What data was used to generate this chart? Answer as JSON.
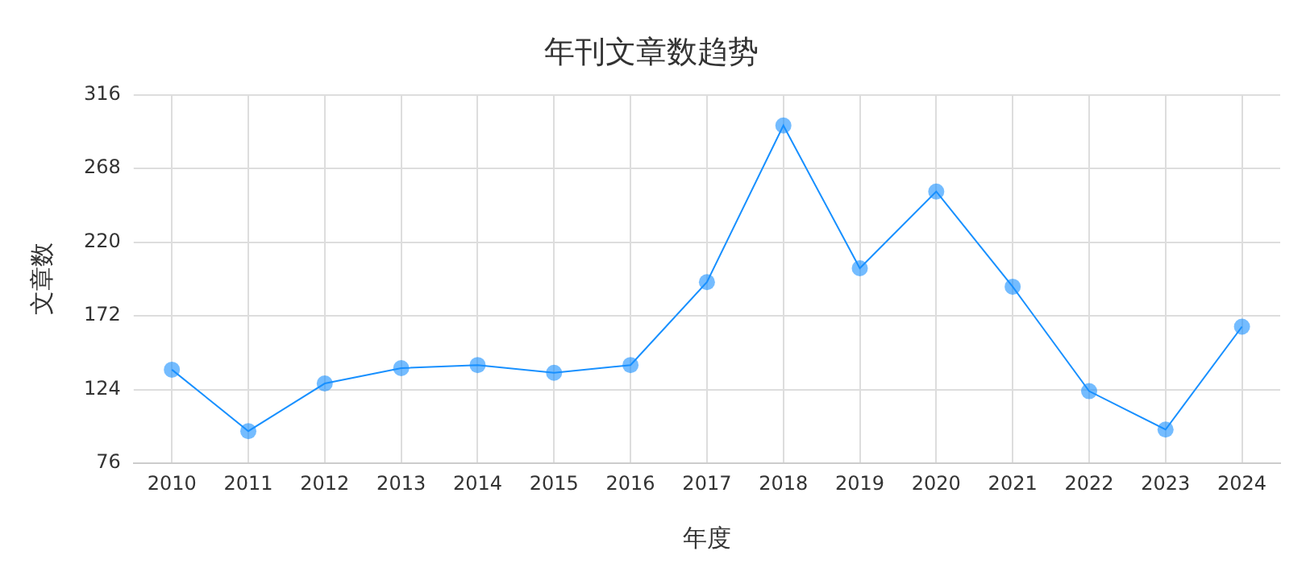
{
  "chart_data": {
    "type": "line",
    "title": "年刊文章数趋势",
    "xlabel": "年度",
    "ylabel": "文章数",
    "categories": [
      "2010",
      "2011",
      "2012",
      "2013",
      "2014",
      "2015",
      "2016",
      "2017",
      "2018",
      "2019",
      "2020",
      "2021",
      "2022",
      "2023",
      "2024"
    ],
    "series": [
      {
        "color": "#1890ff",
        "values": [
          137,
          97,
          128,
          138,
          140,
          135,
          140,
          194,
          296,
          203,
          253,
          191,
          123,
          98,
          165
        ]
      }
    ],
    "ylim": [
      76,
      316
    ],
    "yticks": [
      76,
      124,
      172,
      220,
      268,
      316
    ],
    "grid": true,
    "marker": "circle",
    "line_style": "solid",
    "legend": false
  }
}
